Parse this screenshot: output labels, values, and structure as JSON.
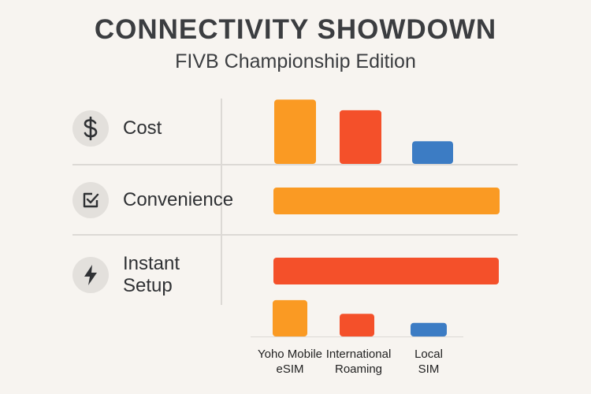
{
  "title": "CONNECTIVITY SHOWDOWN",
  "subtitle": "FIVB Championship Edition",
  "rows": [
    {
      "label": "Cost",
      "icon": "dollar-icon"
    },
    {
      "label": "Convenience",
      "icon": "checkbox-icon"
    },
    {
      "label": "Instant Setup",
      "label_line1": "Instant",
      "label_line2": "Setup",
      "icon": "lightning-icon"
    }
  ],
  "colors": {
    "orange": "#fa9a23",
    "red": "#f4502a",
    "blue": "#3c7cc4"
  },
  "chart_data": {
    "type": "bar",
    "categories": [
      "Yoho Mobile eSIM",
      "International Roaming",
      "Local SIM"
    ],
    "category_lines": [
      [
        "Yoho Mobile",
        "eSIM"
      ],
      [
        "International",
        "Roaming"
      ],
      [
        "Local",
        "SIM"
      ]
    ],
    "panels": [
      {
        "metric": "Cost",
        "orientation": "vertical",
        "values": [
          85,
          71,
          30
        ]
      },
      {
        "metric": "Convenience",
        "orientation": "horizontal",
        "values": [
          100
        ]
      },
      {
        "metric": "Instant Setup",
        "orientation": "horizontal",
        "values": [
          100
        ]
      },
      {
        "metric": "",
        "orientation": "vertical",
        "values": [
          48,
          30,
          18
        ]
      }
    ],
    "grid": false,
    "legend": "none"
  }
}
